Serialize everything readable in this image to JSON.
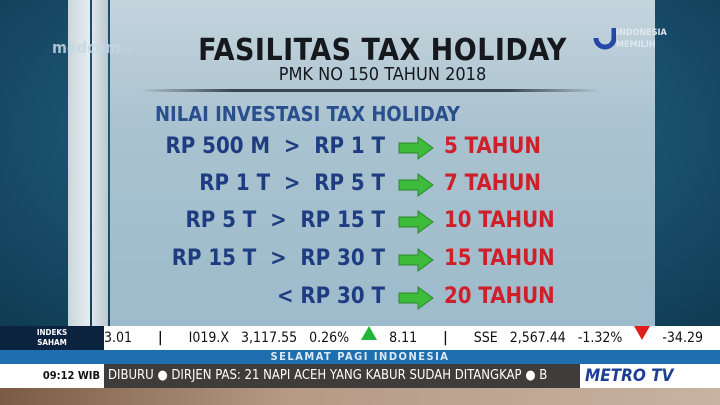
{
  "header": {
    "title": "FASILITAS TAX HOLIDAY",
    "subtitle": "PMK NO 150 TAHUN 2018",
    "brand_left": "medcom",
    "brand_left_suffix": ".id",
    "brand_right": [
      "INDONESIA",
      "MEMILIH"
    ]
  },
  "table": {
    "heading": "NILAI INVESTASI TAX HOLIDAY",
    "rows": [
      {
        "range": "RP 500 M  >  RP 1 T",
        "period": "5 TAHUN"
      },
      {
        "range": "RP 1 T  >  RP 5 T",
        "period": "7 TAHUN"
      },
      {
        "range": "RP 5 T  >  RP 15 T",
        "period": "10 TAHUN"
      },
      {
        "range": "RP 15 T  >  RP 30 T",
        "period": "15 TAHUN"
      },
      {
        "range": "< RP 30 T",
        "period": "20 TAHUN"
      }
    ]
  },
  "colors": {
    "range": "#1e3d80",
    "period": "#cf1f2b",
    "arrow": "#3dbb3a"
  },
  "ticker": {
    "label": "INDEKS SAHAM",
    "items": [
      "3.01",
      "|",
      "I019.X",
      "3,117.55",
      "0.26%",
      "up",
      "8.11",
      "|",
      "SSE",
      "2,567.44",
      "-1.32%",
      "down",
      "-34.29",
      "|"
    ]
  },
  "program": "SELAMAT PAGI INDONESIA",
  "crawl": {
    "time": "09:12 WIB",
    "text": "DIBURU  ●  DIRJEN PAS: 21 NAPI ACEH YANG KABUR SUDAH DITANGKAP  ●  B"
  },
  "channel_logo": "METRO TV"
}
